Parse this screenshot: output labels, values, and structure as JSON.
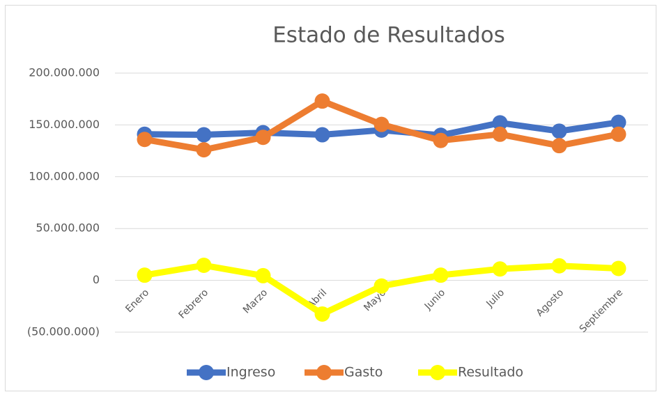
{
  "chart_data": {
    "type": "line",
    "title": "Estado de Resultados",
    "categories": [
      "Enero",
      "Febrero",
      "Marzo",
      "Abril",
      "Mayo",
      "Junio",
      "Julio",
      "Agosto",
      "Septiembre"
    ],
    "series": [
      {
        "name": "Ingreso",
        "color": "#4472c4",
        "values": [
          141000000,
          140500000,
          142500000,
          140500000,
          145000000,
          140000000,
          152000000,
          144000000,
          152500000
        ]
      },
      {
        "name": "Gasto",
        "color": "#ed7d31",
        "values": [
          136000000,
          126000000,
          138000000,
          173000000,
          150500000,
          135000000,
          141000000,
          130000000,
          141000000
        ]
      },
      {
        "name": "Resultado",
        "color": "#ffff00",
        "values": [
          5000000,
          14500000,
          4500000,
          -32500000,
          -5500000,
          5000000,
          11000000,
          14000000,
          11500000
        ]
      }
    ],
    "ylim": [
      -50000000,
      200000000
    ],
    "yticks": [
      {
        "value": -50000000,
        "label": "(50.000.000)"
      },
      0,
      {
        "value": 50000000,
        "label": "50.000.000"
      },
      {
        "value": 100000000,
        "label": "100.000.000"
      },
      {
        "value": 150000000,
        "label": "150.000.000"
      },
      {
        "value": 200000000,
        "label": "200.000.000"
      }
    ],
    "grid": true,
    "legend": "bottom"
  }
}
